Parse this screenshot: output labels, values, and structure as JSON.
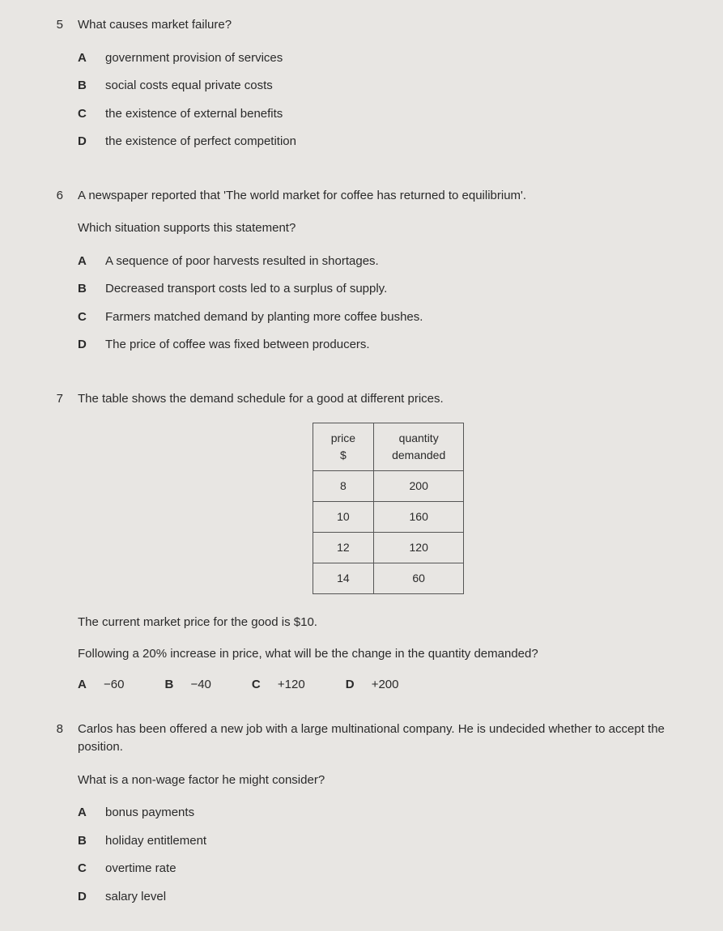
{
  "q5": {
    "number": "5",
    "text": "What causes market failure?",
    "options": {
      "A": "government provision of services",
      "B": "social costs equal private costs",
      "C": "the existence of external benefits",
      "D": "the existence of perfect competition"
    }
  },
  "q6": {
    "number": "6",
    "text1": "A newspaper reported that 'The world market for coffee has returned to equilibrium'.",
    "text2": "Which situation supports this statement?",
    "options": {
      "A": "A sequence of poor harvests resulted in shortages.",
      "B": "Decreased transport costs led to a surplus of supply.",
      "C": "Farmers matched demand by planting more coffee bushes.",
      "D": "The price of coffee was fixed between producers."
    }
  },
  "q7": {
    "number": "7",
    "text1": "The table shows the demand schedule for a good at different prices.",
    "table": {
      "header1_line1": "price",
      "header1_line2": "$",
      "header2_line1": "quantity",
      "header2_line2": "demanded",
      "rows": {
        "r0c0": "8",
        "r0c1": "200",
        "r1c0": "10",
        "r1c1": "160",
        "r2c0": "12",
        "r2c1": "120",
        "r3c0": "14",
        "r3c1": "60"
      }
    },
    "text2": "The current market price for the good is $10.",
    "text3": "Following a 20% increase in price, what will be the change in the quantity demanded?",
    "options": {
      "A": "−60",
      "B": "−40",
      "C": "+120",
      "D": "+200"
    }
  },
  "q8": {
    "number": "8",
    "text1": "Carlos has been offered a new job with a large multinational company. He is undecided whether to accept the position.",
    "text2": "What is a non-wage factor he might consider?",
    "options": {
      "A": "bonus payments",
      "B": "holiday entitlement",
      "C": "overtime rate",
      "D": "salary level"
    }
  },
  "letters": {
    "A": "A",
    "B": "B",
    "C": "C",
    "D": "D"
  }
}
